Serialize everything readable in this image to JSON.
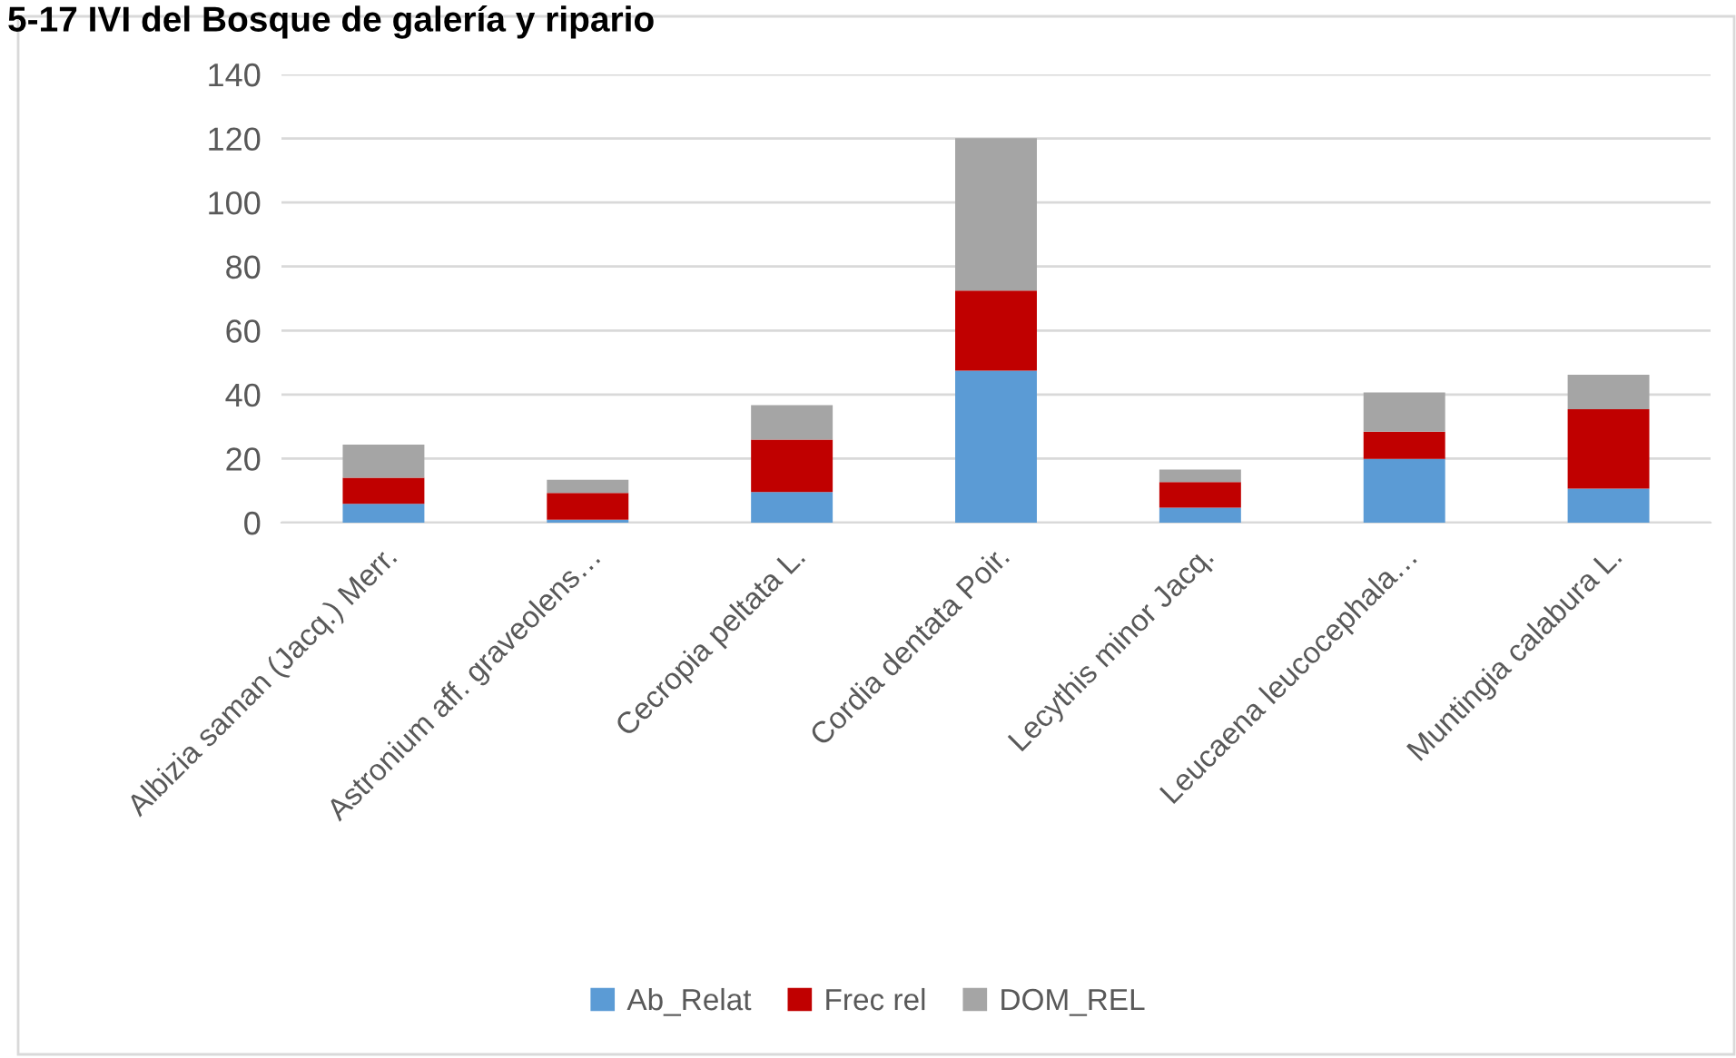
{
  "chart_data": {
    "type": "bar",
    "stacked": true,
    "title": "5-17 IVI del Bosque de galería y ripario",
    "categories": [
      "Albizia saman (Jacq.) Merr.",
      "Astronium aff. graveolens…",
      "Cecropia peltata L.",
      "Cordia dentata Poir.",
      "Lecythis minor Jacq.",
      "Leucaena leucocephala…",
      "Muntingia calabura L."
    ],
    "series": [
      {
        "name": "Ab_Relat",
        "color": "#5b9bd5",
        "values": [
          5.9,
          0.9,
          9.6,
          47.5,
          4.7,
          19.9,
          10.6
        ]
      },
      {
        "name": "Frec rel",
        "color": "#c00000",
        "values": [
          8.1,
          8.4,
          16.3,
          25.0,
          8.0,
          8.5,
          24.8
        ]
      },
      {
        "name": "DOM_REL",
        "color": "#a5a5a5",
        "values": [
          10.4,
          4.1,
          10.8,
          47.6,
          3.9,
          12.3,
          10.8
        ]
      }
    ],
    "ylim": [
      0,
      140
    ],
    "yticks": [
      0,
      20,
      40,
      60,
      80,
      100,
      120,
      140
    ],
    "grid": "y",
    "legend": "bottom"
  }
}
